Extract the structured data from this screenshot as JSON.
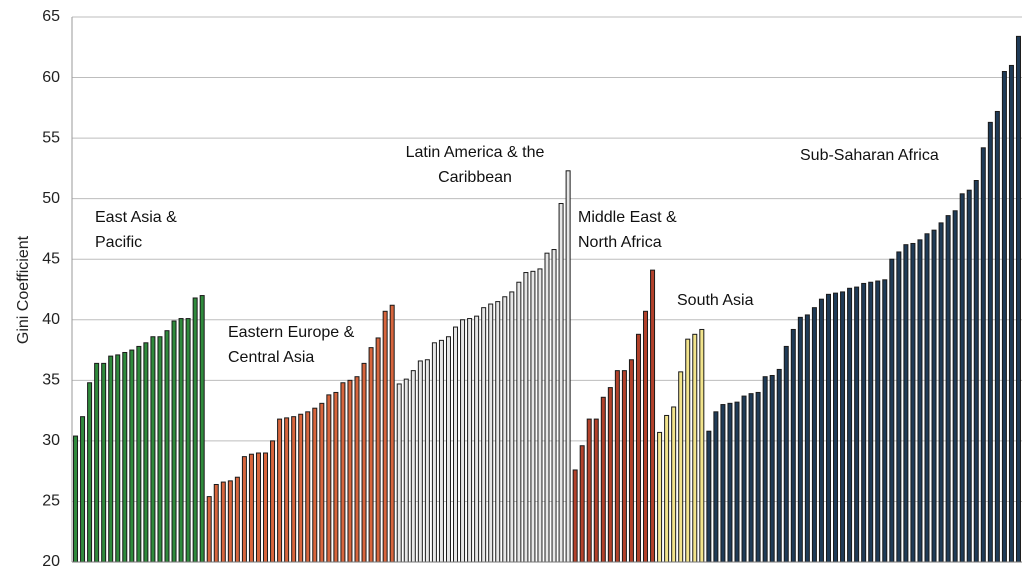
{
  "chart_data": {
    "type": "bar",
    "y_label": "Gini Coefficient",
    "ylim": [
      20,
      65
    ],
    "yticks": [
      20,
      25,
      30,
      35,
      40,
      45,
      50,
      55,
      60,
      65
    ],
    "grid": true,
    "series": [
      {
        "name": "East Asia & Pacific",
        "color": "#2f8a3c",
        "values": [
          30.4,
          32.0,
          34.8,
          36.4,
          36.4,
          37.0,
          37.1,
          37.3,
          37.5,
          37.8,
          38.1,
          38.6,
          38.6,
          39.1,
          39.9,
          40.1,
          40.1,
          41.8,
          42.0
        ]
      },
      {
        "name": "Eastern Europe & Central Asia",
        "color": "#d7653d",
        "values": [
          25.4,
          26.4,
          26.6,
          26.7,
          27.0,
          28.7,
          28.9,
          29.0,
          29.0,
          30.0,
          31.8,
          31.9,
          32.0,
          32.2,
          32.4,
          32.7,
          33.1,
          33.8,
          34.0,
          34.8,
          35.0,
          35.3,
          36.4,
          37.7,
          38.5,
          40.7,
          41.2
        ]
      },
      {
        "name": "Latin America & the Caribbean",
        "color": "#e6e6e6",
        "values": [
          34.7,
          35.1,
          35.8,
          36.6,
          36.7,
          38.1,
          38.3,
          38.6,
          39.4,
          40.0,
          40.1,
          40.3,
          41.0,
          41.3,
          41.5,
          41.9,
          42.3,
          43.1,
          43.9,
          44.0,
          44.2,
          45.5,
          45.8,
          49.6,
          52.3
        ]
      },
      {
        "name": "Middle East & North Africa",
        "color": "#b2412b",
        "values": [
          27.6,
          29.6,
          31.8,
          31.8,
          33.6,
          34.4,
          35.8,
          35.8,
          36.7,
          38.8,
          40.7,
          44.1
        ]
      },
      {
        "name": "South Asia",
        "color": "#f2e48c",
        "values": [
          30.7,
          32.1,
          32.8,
          35.7,
          38.4,
          38.8,
          39.2
        ]
      },
      {
        "name": "Sub-Saharan Africa",
        "color": "#1f3b57",
        "values": [
          30.8,
          32.4,
          33.0,
          33.1,
          33.2,
          33.7,
          33.9,
          34.0,
          35.3,
          35.4,
          35.9,
          37.8,
          39.2,
          40.2,
          40.4,
          41.0,
          41.7,
          42.1,
          42.2,
          42.3,
          42.6,
          42.7,
          43.0,
          43.1,
          43.2,
          43.3,
          45.0,
          45.6,
          46.2,
          46.3,
          46.6,
          47.1,
          47.4,
          48.0,
          48.6,
          49.0,
          50.4,
          50.7,
          51.5,
          54.2,
          56.3,
          57.2,
          60.5,
          61.0,
          63.4
        ]
      }
    ]
  }
}
